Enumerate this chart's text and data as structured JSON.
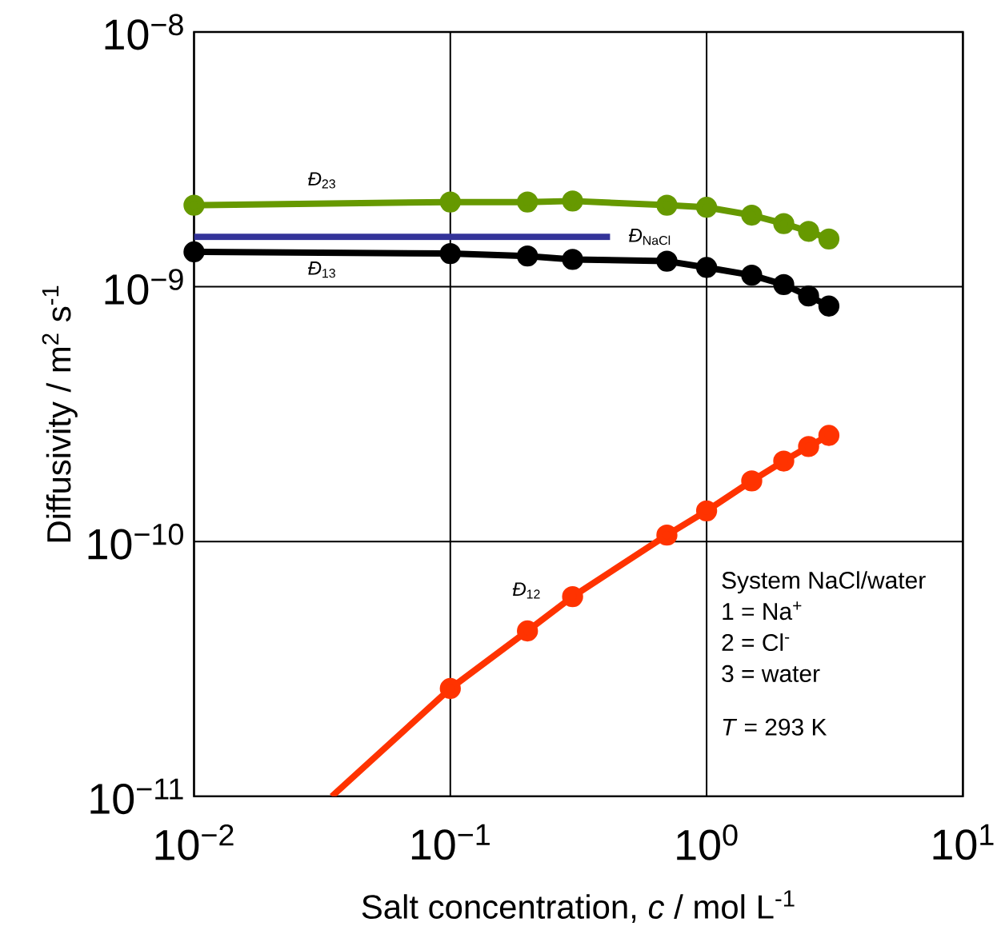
{
  "chart_data": {
    "type": "line",
    "xlabel": "Salt concentration, *c* / mol L$^{-1}$",
    "ylabel": "Diffusivity / m$^{2}$ s$^{-1}$",
    "log": "xy",
    "grid": true,
    "line_style": "solid",
    "marker": "circle",
    "xlim": [
      0.01,
      10
    ],
    "ylim": [
      1e-11,
      1e-08
    ],
    "xticks": [
      {
        "value": 0.01,
        "label": "10$^{−2}$"
      },
      {
        "value": 0.1,
        "label": "10$^{−1}$"
      },
      {
        "value": 1,
        "label": "10$^{0}$"
      },
      {
        "value": 10,
        "label": "10$^{1}$"
      }
    ],
    "yticks": [
      {
        "value": 1e-11,
        "label": "10$^{−11}$"
      },
      {
        "value": 1e-10,
        "label": "10$^{−10}$"
      },
      {
        "value": 1e-09,
        "label": "10$^{−9}$"
      },
      {
        "value": 1e-08,
        "label": "10$^{−8}$"
      }
    ],
    "series": [
      {
        "name": "*Đ*$_{23}$",
        "color": "#669900",
        "x": [
          0.01,
          0.1,
          0.2,
          0.3,
          0.7,
          1,
          1.5,
          2,
          2.5,
          3
        ],
        "values": [
          2.09e-09,
          2.15e-09,
          2.15e-09,
          2.17e-09,
          2.09e-09,
          2.05e-09,
          1.91e-09,
          1.77e-09,
          1.65e-09,
          1.54e-09
        ]
      },
      {
        "name": "*Đ*$_{13}$",
        "color": "#000000",
        "x": [
          0.01,
          0.1,
          0.2,
          0.3,
          0.7,
          1,
          1.5,
          2,
          2.5,
          3
        ],
        "values": [
          1.37e-09,
          1.35e-09,
          1.32e-09,
          1.28e-09,
          1.26e-09,
          1.19e-09,
          1.11e-09,
          1.02e-09,
          9.2e-10,
          8.4e-10
        ]
      },
      {
        "name": "*Đ*$_{NaCl}$",
        "color": "#333399",
        "marker": "none",
        "x": [
          0.01,
          0.42
        ],
        "values": [
          1.57e-09,
          1.57e-09
        ]
      },
      {
        "color": "#ff3300",
        "marker": "none",
        "x": [
          0.0345,
          0.1,
          0.2,
          0.3,
          0.7,
          1,
          1.5,
          2,
          2.5,
          3
        ],
        "values": [
          1e-11,
          2.65e-11,
          4.46e-11,
          6.08e-11,
          1.06e-10,
          1.32e-10,
          1.73e-10,
          2.07e-10,
          2.36e-10,
          2.61e-10
        ]
      },
      {
        "name": "*Đ*$_{12}$",
        "type": "scatter",
        "color": "#ff3300",
        "x": [
          0.1,
          0.2,
          0.3,
          0.7,
          1,
          1.5,
          2,
          2.5,
          3
        ],
        "values": [
          2.65e-11,
          4.46e-11,
          6.08e-11,
          1.06e-10,
          1.32e-10,
          1.73e-10,
          2.07e-10,
          2.36e-10,
          2.61e-10
        ]
      }
    ],
    "annotations": [
      "System NaCl/water",
      "1 = Na$^{+}$",
      "2 = Cl$^{-}$",
      "3 = water",
      "*T* = 293 K"
    ]
  }
}
